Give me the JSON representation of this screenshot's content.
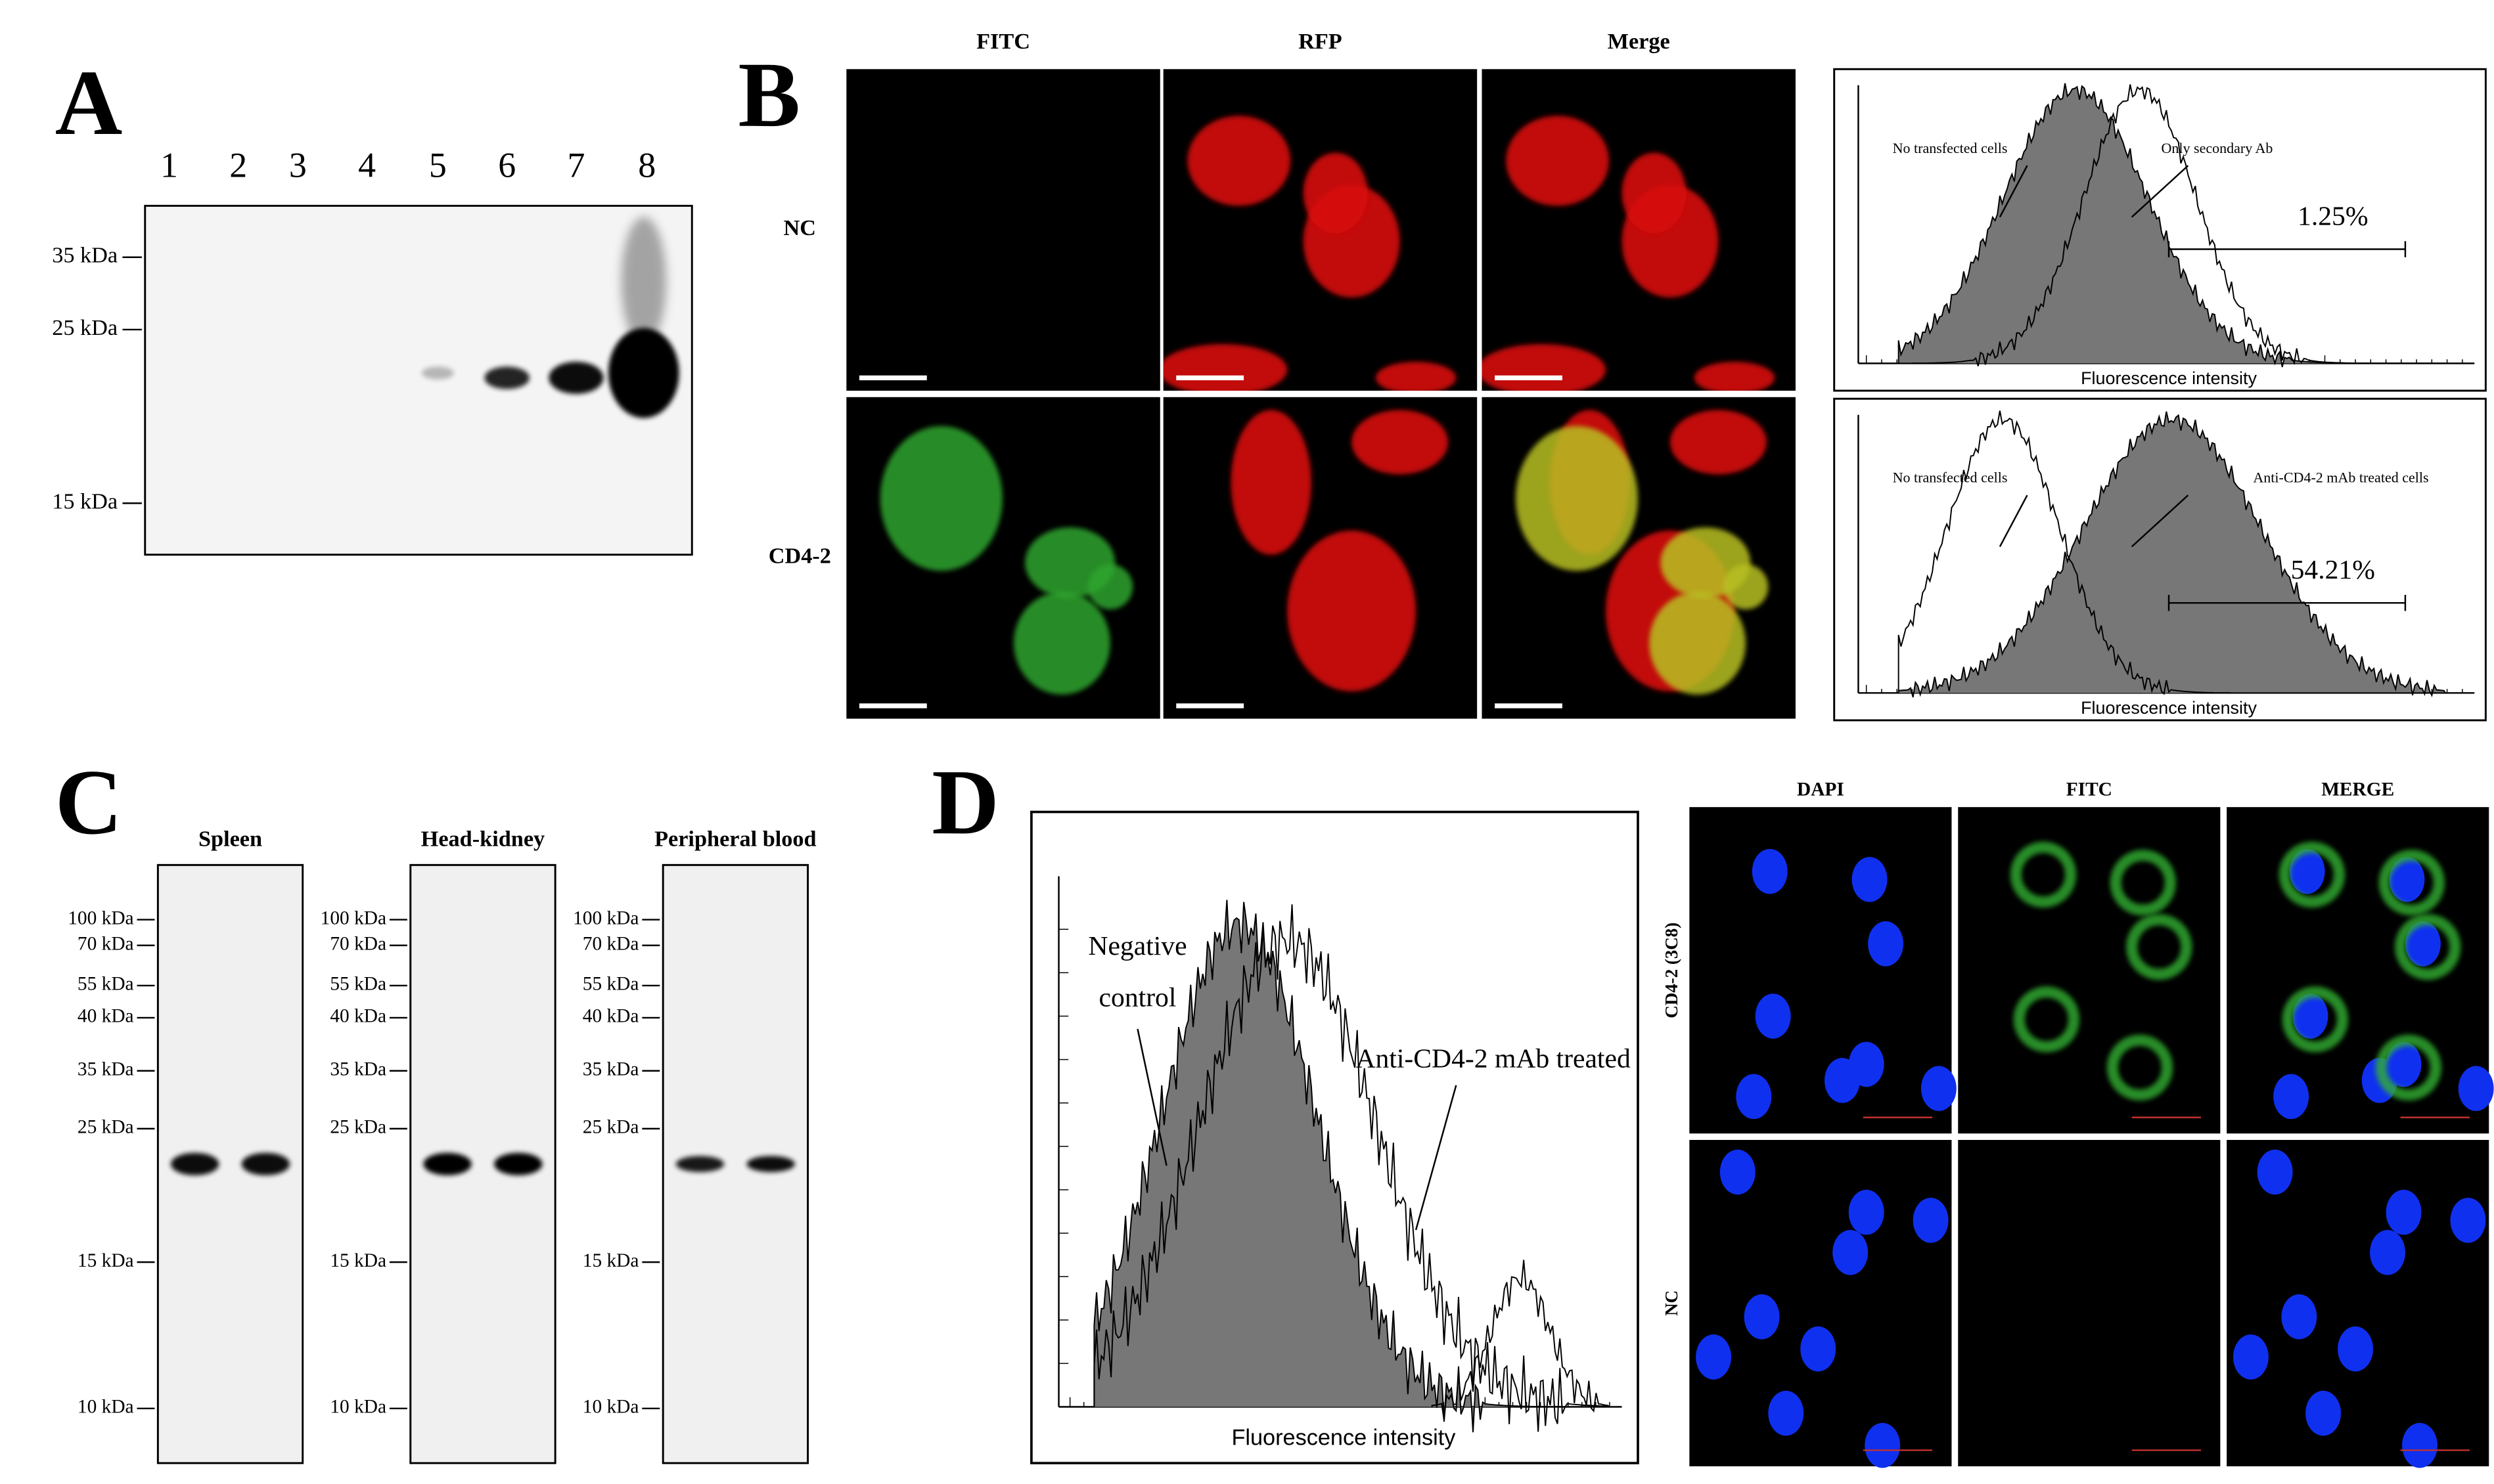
{
  "panel_a": {
    "label": "A",
    "lanes": [
      "1",
      "2",
      "3",
      "4",
      "5",
      "6",
      "7",
      "8"
    ],
    "markers": [
      "35 kDa",
      "25 kDa",
      "15 kDa"
    ]
  },
  "panel_b": {
    "label": "B",
    "columns": [
      "FITC",
      "RFP",
      "Merge"
    ],
    "rows": [
      "NC",
      "CD4-2"
    ],
    "histograms": [
      {
        "left_label": "No transfected cells",
        "right_label": "Only secondary Ab",
        "percent": "1.25%",
        "x_label": "Fluorescence intensity"
      },
      {
        "left_label": "No transfected cells",
        "right_label": "Anti-CD4-2 mAb treated cells",
        "percent": "54.21%",
        "x_label": "Fluorescence intensity"
      }
    ]
  },
  "panel_c": {
    "label": "C",
    "blots": [
      "Spleen",
      "Head-kidney",
      "Peripheral blood"
    ],
    "markers": [
      "100 kDa",
      "70 kDa",
      "55 kDa",
      "40 kDa",
      "35 kDa",
      "25 kDa",
      "15 kDa",
      "10 kDa"
    ]
  },
  "panel_d": {
    "label": "D",
    "histogram": {
      "negative_label": [
        "Negative",
        "control"
      ],
      "treated_label": "Anti-CD4-2 mAb treated",
      "x_label": "Fluorescence intensity"
    },
    "columns": [
      "DAPI",
      "FITC",
      "MERGE"
    ],
    "rows": [
      "CD4-2 (3C8)",
      "NC"
    ]
  }
}
